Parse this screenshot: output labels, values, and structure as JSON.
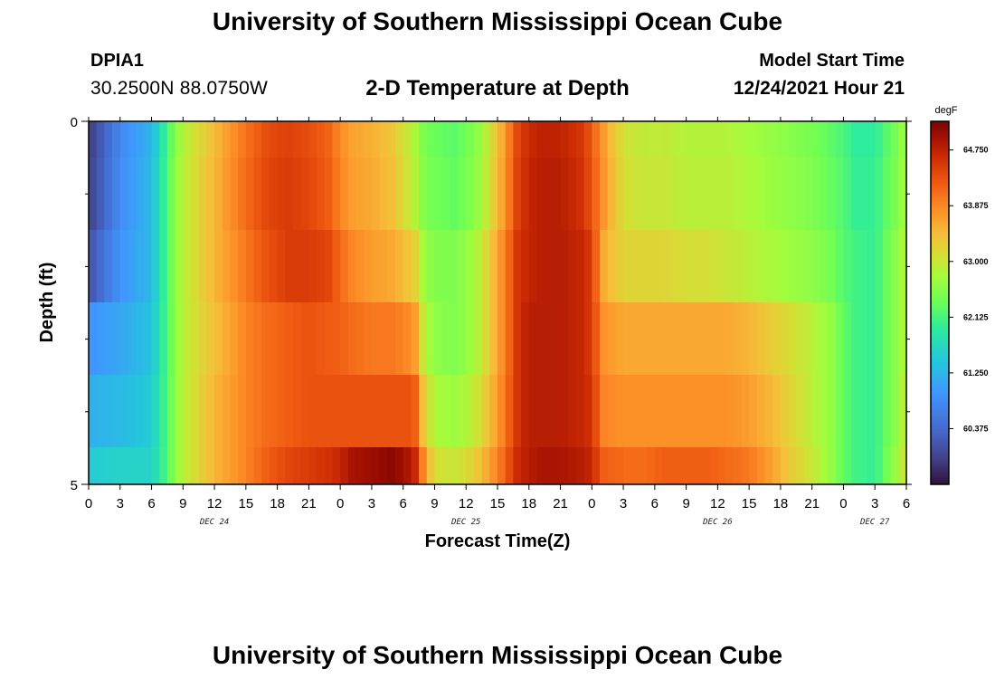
{
  "page": {
    "title_top": "University of Southern Mississippi Ocean Cube",
    "title_bottom": "University of Southern Mississippi Ocean Cube",
    "station_id": "DPIA1",
    "station_coords": "30.2500N  88.0750W",
    "plot_title": "2-D Temperature at Depth",
    "model_start_label": "Model Start Time",
    "model_start_value": "12/24/2021 Hour 21"
  },
  "chart_data": {
    "type": "heatmap",
    "title": "2-D Temperature at Depth",
    "xlabel": "Forecast Time(Z)",
    "ylabel": "Depth (ft)",
    "x_tick_labels": [
      "0",
      "3",
      "6",
      "9",
      "12",
      "15",
      "18",
      "21",
      "0",
      "3",
      "6",
      "9",
      "12",
      "15",
      "18",
      "21",
      "0",
      "3",
      "6",
      "9",
      "12",
      "15",
      "18",
      "21",
      "0",
      "3",
      "6"
    ],
    "x_range_hours": [
      0,
      78
    ],
    "day_labels": [
      {
        "text": "DEC 24",
        "hour": 12
      },
      {
        "text": "DEC 25",
        "hour": 36
      },
      {
        "text": "DEC 26",
        "hour": 60
      },
      {
        "text": "DEC 27",
        "hour": 75
      }
    ],
    "y_tick_labels": [
      "0",
      "5"
    ],
    "y_range": [
      0,
      5
    ],
    "depth_layers": 5,
    "colorbar": {
      "unit": "degF",
      "min": 59.5,
      "max": 65.2,
      "tick_labels": [
        "64.750",
        "63.875",
        "63.000",
        "62.125",
        "61.250",
        "60.375"
      ],
      "tick_values": [
        64.75,
        63.875,
        63.0,
        62.125,
        61.25,
        60.375
      ]
    },
    "series": [
      {
        "hours": [
          0,
          3,
          6,
          7.5,
          9,
          12,
          15,
          17,
          19,
          21,
          23,
          24,
          25,
          27,
          29,
          31,
          32,
          33,
          35,
          37,
          39,
          41,
          42,
          43,
          45,
          47,
          48,
          49,
          51,
          53,
          55,
          57,
          59,
          61,
          63,
          65,
          67,
          69,
          71,
          72,
          73,
          75,
          77,
          78
        ],
        "depth_profiles": [
          [
            59.9,
            60.8,
            61.3,
            62.2,
            62.9,
            63.5,
            64.1,
            64.4,
            64.5,
            64.4,
            64.2,
            63.9,
            63.7,
            63.6,
            63.4,
            62.9,
            62.5,
            62.4,
            62.3,
            62.6,
            63.4,
            64.5,
            64.7,
            64.8,
            64.8,
            64.6,
            64.3,
            63.8,
            63.1,
            63.0,
            63.0,
            62.9,
            62.9,
            62.9,
            62.8,
            62.7,
            62.6,
            62.5,
            62.3,
            62.2,
            62.0,
            62.0,
            62.5,
            62.8
          ],
          [
            60.1,
            60.9,
            61.3,
            62.2,
            62.9,
            63.5,
            64.0,
            64.3,
            64.5,
            64.5,
            64.4,
            64.1,
            63.9,
            63.7,
            63.6,
            63.3,
            62.7,
            62.5,
            62.5,
            62.8,
            63.6,
            64.6,
            64.7,
            64.8,
            64.8,
            64.7,
            64.5,
            63.6,
            63.2,
            63.2,
            63.2,
            63.1,
            63.1,
            63.0,
            62.9,
            62.8,
            62.7,
            62.6,
            62.4,
            62.2,
            62.1,
            62.0,
            62.6,
            62.9
          ],
          [
            60.9,
            61.1,
            61.4,
            62.2,
            62.9,
            63.4,
            63.9,
            64.1,
            64.2,
            64.3,
            64.2,
            64.2,
            64.1,
            64.0,
            64.0,
            63.8,
            62.9,
            62.6,
            62.5,
            62.8,
            63.6,
            64.6,
            64.8,
            64.8,
            64.8,
            64.7,
            64.5,
            63.8,
            63.6,
            63.6,
            63.6,
            63.6,
            63.6,
            63.6,
            63.5,
            63.3,
            63.1,
            62.9,
            62.6,
            62.3,
            62.1,
            62.0,
            62.6,
            62.9
          ],
          [
            61.2,
            61.3,
            61.5,
            62.2,
            62.9,
            63.5,
            63.9,
            64.1,
            64.2,
            64.3,
            64.3,
            64.3,
            64.3,
            64.3,
            64.3,
            64.3,
            63.3,
            62.8,
            62.7,
            63.0,
            63.7,
            64.6,
            64.8,
            64.8,
            64.8,
            64.7,
            64.6,
            63.9,
            63.8,
            63.8,
            63.8,
            63.8,
            63.8,
            63.8,
            63.7,
            63.5,
            63.2,
            62.9,
            62.6,
            62.3,
            62.1,
            62.0,
            62.6,
            63.0
          ],
          [
            61.5,
            61.6,
            61.6,
            62.2,
            62.9,
            63.5,
            63.9,
            64.2,
            64.4,
            64.5,
            64.6,
            64.7,
            64.9,
            65.0,
            65.1,
            64.8,
            63.8,
            63.1,
            63.0,
            63.3,
            63.9,
            64.7,
            64.8,
            64.9,
            64.9,
            64.8,
            64.7,
            64.2,
            64.1,
            64.1,
            64.2,
            64.2,
            64.2,
            64.1,
            64.0,
            63.7,
            63.3,
            63.0,
            62.6,
            62.3,
            62.1,
            62.0,
            62.7,
            63.1
          ]
        ]
      }
    ],
    "grid": false
  }
}
